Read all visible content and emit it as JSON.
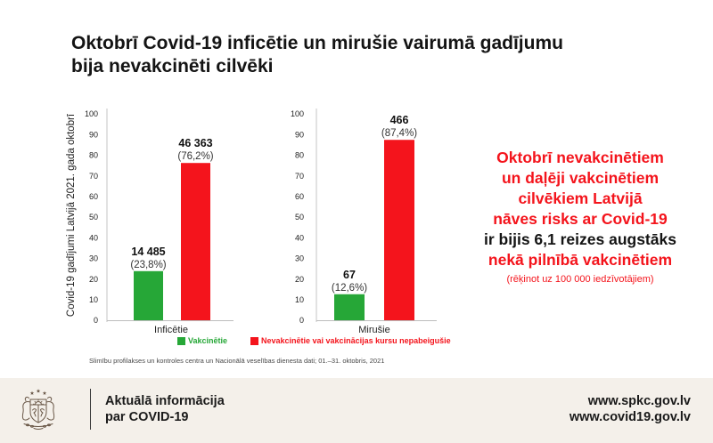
{
  "title": {
    "line1": "Oktobrī Covid-19 inficētie un mirušie vairumā gadījumu",
    "line2": "bija nevakcinēti cilvēki"
  },
  "colors": {
    "vaccinated": "#26a737",
    "unvaccinated": "#f4141c",
    "dark_text": "#141414",
    "footer_bg": "#f4f0ea"
  },
  "chart_data": [
    {
      "type": "bar",
      "xlabel": "Inficētie",
      "ylabel": "Covid-19 gadījumi Latvijā 2021. gada oktobrī",
      "ylim": [
        0,
        100
      ],
      "yticks": [
        0,
        10,
        20,
        30,
        40,
        50,
        60,
        70,
        80,
        90,
        100
      ],
      "grid": false,
      "values": [
        23.8,
        76.2
      ],
      "colors": [
        "#26a737",
        "#f4141c"
      ],
      "data_labels": [
        {
          "count": "14 485",
          "percent": "(23,8%)"
        },
        {
          "count": "46 363",
          "percent": "(76,2%)"
        }
      ]
    },
    {
      "type": "bar",
      "xlabel": "Mirušie",
      "ylim": [
        0,
        100
      ],
      "yticks": [
        0,
        10,
        20,
        30,
        40,
        50,
        60,
        70,
        80,
        90,
        100
      ],
      "grid": false,
      "values": [
        12.6,
        87.4
      ],
      "colors": [
        "#26a737",
        "#f4141c"
      ],
      "data_labels": [
        {
          "count": "67",
          "percent": "(12,6%)"
        },
        {
          "count": "466",
          "percent": "(87,4%)"
        }
      ]
    }
  ],
  "legend": {
    "position": "bottom",
    "items": [
      {
        "label": "Vakcinētie",
        "color": "#26a737"
      },
      {
        "label": "Nevakcinētie vai vakcinācijas kursu nepabeigušie",
        "color": "#f4141c"
      }
    ]
  },
  "source_note": "Slimību profilakses un kontroles centra un Nacionālā veselības dienesta dati; 01.–31. oktobris, 2021",
  "callout": {
    "lines": [
      "Oktobrī nevakcinētiem",
      "un daļēji vakcinētiem",
      "cilvēkiem Latvijā",
      "nāves risks ar Covid-19",
      "ir bijis 6,1 reizes augstāks",
      "nekā pilnībā vakcinētiem"
    ],
    "line_colors": [
      "#f4141c",
      "#f4141c",
      "#f4141c",
      "#f4141c",
      "#141414",
      "#f4141c"
    ],
    "note": "(rēķinot uz 100 000 iedzīvotājiem)",
    "note_color": "#f4141c"
  },
  "footer": {
    "logo_icon": "latvia-coat-of-arms-icon",
    "info_line1": "Aktuālā informācija",
    "info_line2": "par COVID-19",
    "links": [
      "www.spkc.gov.lv",
      "www.covid19.gov.lv"
    ]
  }
}
